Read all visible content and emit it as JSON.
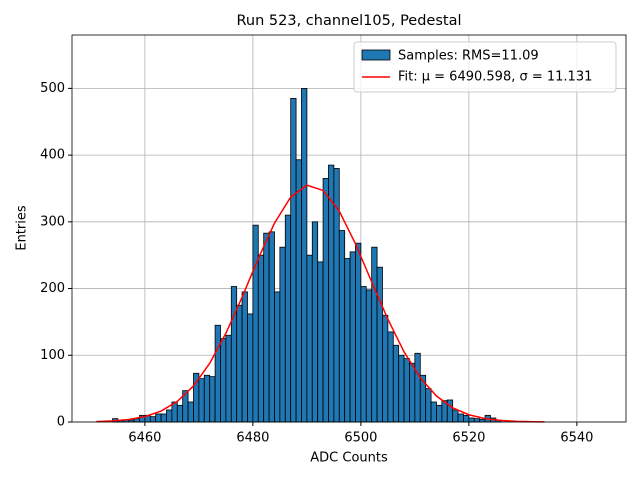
{
  "chart_data": {
    "type": "histogram",
    "title": "Run 523, channel105, Pedestal",
    "xlabel": "ADC Counts",
    "ylabel": "Entries",
    "name": "Samples: RMS=11.09",
    "color": "#1f77b4",
    "edgecolor": "#000000",
    "bins": [
      6454,
      6455,
      6456,
      6457,
      6458,
      6459,
      6460,
      6461,
      6462,
      6463,
      6464,
      6465,
      6466,
      6467,
      6468,
      6469,
      6470,
      6471,
      6472,
      6473,
      6474,
      6475,
      6476,
      6477,
      6478,
      6479,
      6480,
      6481,
      6482,
      6483,
      6484,
      6485,
      6486,
      6487,
      6488,
      6489,
      6490,
      6491,
      6492,
      6493,
      6494,
      6495,
      6496,
      6497,
      6498,
      6499,
      6500,
      6501,
      6502,
      6503,
      6504,
      6505,
      6506,
      6507,
      6508,
      6509,
      6510,
      6511,
      6512,
      6513,
      6514,
      6515,
      6516,
      6517,
      6518,
      6519,
      6520,
      6521,
      6522,
      6523,
      6524,
      6525,
      6526
    ],
    "counts": [
      5,
      2,
      3,
      3,
      5,
      10,
      10,
      8,
      12,
      12,
      18,
      30,
      25,
      47,
      30,
      73,
      65,
      70,
      68,
      145,
      125,
      130,
      203,
      175,
      195,
      162,
      295,
      250,
      283,
      285,
      195,
      262,
      310,
      485,
      393,
      500,
      250,
      300,
      240,
      365,
      385,
      380,
      287,
      245,
      255,
      268,
      203,
      198,
      262,
      232,
      160,
      135,
      115,
      100,
      95,
      88,
      103,
      70,
      50,
      30,
      25,
      32,
      33,
      18,
      12,
      10,
      6,
      5,
      4,
      10,
      6,
      3
    ],
    "fit": {
      "type": "line",
      "name": "Fit: μ = 6490.598, σ = 11.131",
      "color": "#ff0000",
      "x": [
        6451,
        6454,
        6457,
        6460,
        6463,
        6466,
        6469,
        6472,
        6475,
        6478,
        6481,
        6484,
        6487,
        6490,
        6493,
        6496,
        6499,
        6502,
        6505,
        6508,
        6511,
        6514,
        6517,
        6520,
        6523,
        6526,
        6529,
        6532,
        6534
      ],
      "values": [
        0.6,
        1.6,
        3.7,
        8.1,
        16.4,
        30.9,
        54,
        87.9,
        133,
        187,
        245,
        298,
        337,
        355,
        347,
        316,
        267,
        210,
        154,
        105,
        66.2,
        38.9,
        21.3,
        10.9,
        5.1,
        2.3,
        0.9,
        0.35,
        0.18
      ]
    },
    "xlim": [
      6446.5,
      6549.1
    ],
    "ylim": [
      0,
      580
    ],
    "xticks": [
      6460,
      6480,
      6500,
      6520,
      6540
    ],
    "yticks": [
      0,
      100,
      200,
      300,
      400,
      500
    ],
    "grid": true,
    "legend": "upper right"
  }
}
